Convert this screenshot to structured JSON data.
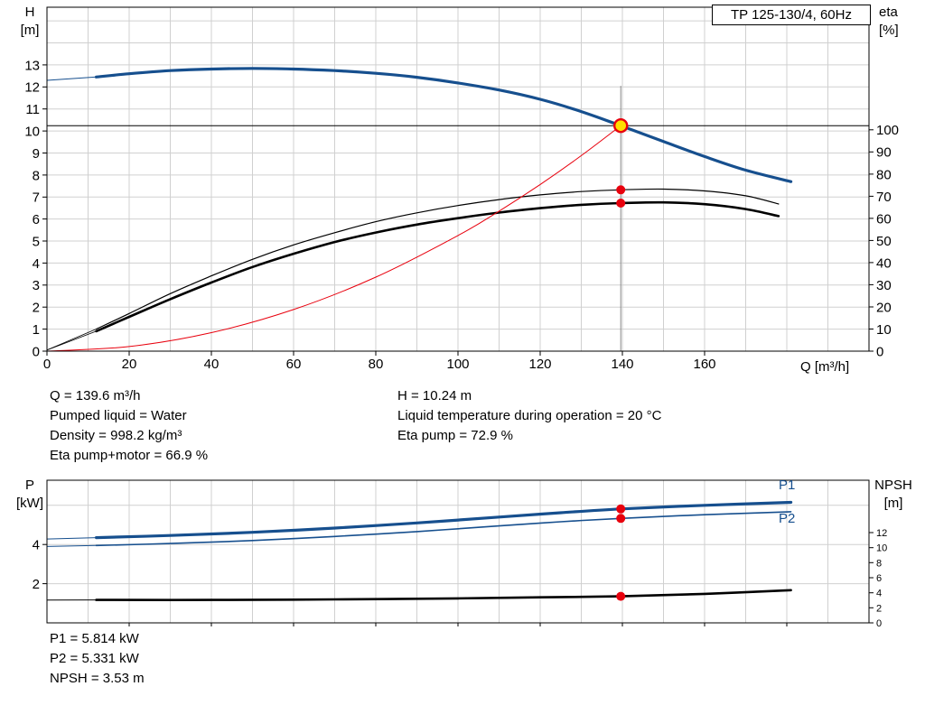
{
  "colors": {
    "blue": "#164f8e",
    "red": "#e8000d",
    "black": "#000000",
    "gray": "#8a8a8a",
    "grid": "#d0d0d0",
    "duty_yellow": "#ffdf00",
    "white": "#ffffff"
  },
  "annotations": {
    "col1": [
      "Q = 139.6 m³/h",
      "Pumped liquid = Water",
      "Density = 998.2 kg/m³",
      "Eta pump+motor = 66.9 %"
    ],
    "col2": [
      "H = 10.24 m",
      "Liquid temperature during operation = 20 °C",
      "Eta pump = 72.9 %"
    ],
    "power": [
      "P1 = 5.814 kW",
      "P2 = 5.331 kW",
      "NPSH = 3.53 m"
    ]
  },
  "chart_data": [
    {
      "type": "line",
      "title": "TP 125-130/4, 60Hz",
      "xlabel": "Q [m³/h]",
      "ylabel_left_lines": [
        "H",
        "[m]"
      ],
      "ylabel_right_lines": [
        "eta",
        "[%]"
      ],
      "xlim": [
        0,
        200
      ],
      "ylim_left": [
        0,
        15.62
      ],
      "ylim_right": [
        0,
        155.4
      ],
      "x_ticks": {
        "values": [
          0,
          20,
          40,
          60,
          80,
          100,
          120,
          140,
          160
        ],
        "minor": []
      },
      "left_ticks": [
        0,
        1,
        2,
        3,
        4,
        5,
        6,
        7,
        8,
        9,
        10,
        11,
        12,
        13
      ],
      "right_ticks": [
        0,
        10,
        20,
        30,
        40,
        50,
        60,
        70,
        80,
        90,
        100
      ],
      "grid": {
        "x_step": 10,
        "y_step": 1
      },
      "series": [
        {
          "name": "pump-curve-leadin",
          "axis": "left",
          "color": "blue",
          "width": 1,
          "points": [
            [
              0,
              12.3
            ],
            [
              12,
              12.45
            ]
          ]
        },
        {
          "name": "pump-curve",
          "axis": "left",
          "color": "blue",
          "width": 3.2,
          "points": [
            [
              12,
              12.45
            ],
            [
              20,
              12.6
            ],
            [
              30,
              12.74
            ],
            [
              40,
              12.81
            ],
            [
              50,
              12.84
            ],
            [
              60,
              12.81
            ],
            [
              70,
              12.74
            ],
            [
              80,
              12.62
            ],
            [
              90,
              12.44
            ],
            [
              100,
              12.18
            ],
            [
              110,
              11.86
            ],
            [
              120,
              11.44
            ],
            [
              130,
              10.88
            ],
            [
              139.6,
              10.24
            ],
            [
              150,
              9.52
            ],
            [
              160,
              8.84
            ],
            [
              170,
              8.22
            ],
            [
              181,
              7.7
            ]
          ]
        },
        {
          "name": "eta-pump-leadin",
          "axis": "right",
          "color": "black",
          "width": 0.8,
          "points": [
            [
              0,
              0.5
            ],
            [
              12,
              10
            ]
          ]
        },
        {
          "name": "eta-pump-curve",
          "axis": "right",
          "color": "black",
          "width": 1.2,
          "points": [
            [
              12,
              10
            ],
            [
              20,
              17
            ],
            [
              30,
              26
            ],
            [
              40,
              34
            ],
            [
              50,
              41.5
            ],
            [
              60,
              48
            ],
            [
              70,
              53.5
            ],
            [
              80,
              58.5
            ],
            [
              90,
              62.5
            ],
            [
              100,
              65.8
            ],
            [
              110,
              68.5
            ],
            [
              120,
              70.6
            ],
            [
              130,
              72.1
            ],
            [
              139.6,
              72.9
            ],
            [
              150,
              73.2
            ],
            [
              160,
              72.4
            ],
            [
              170,
              70.2
            ],
            [
              178,
              66.5
            ]
          ]
        },
        {
          "name": "eta-pump-motor-leadin",
          "axis": "right",
          "color": "black",
          "width": 0.8,
          "points": [
            [
              0,
              0.5
            ],
            [
              12,
              9
            ]
          ]
        },
        {
          "name": "eta-pump-motor-curve",
          "axis": "right",
          "color": "black",
          "width": 2.6,
          "points": [
            [
              12,
              9
            ],
            [
              20,
              15.5
            ],
            [
              30,
              23.5
            ],
            [
              40,
              31
            ],
            [
              50,
              38
            ],
            [
              60,
              44
            ],
            [
              70,
              49.3
            ],
            [
              80,
              53.6
            ],
            [
              90,
              57.2
            ],
            [
              100,
              60.1
            ],
            [
              110,
              62.6
            ],
            [
              120,
              64.6
            ],
            [
              130,
              66.1
            ],
            [
              139.6,
              66.9
            ],
            [
              150,
              67.2
            ],
            [
              160,
              66.4
            ],
            [
              170,
              64.2
            ],
            [
              178,
              61
            ]
          ]
        },
        {
          "name": "system-curve",
          "axis": "left",
          "color": "red",
          "width": 1,
          "points": [
            [
              0,
              0
            ],
            [
              20,
              0.21
            ],
            [
              40,
              0.84
            ],
            [
              60,
              1.89
            ],
            [
              80,
              3.36
            ],
            [
              100,
              5.25
            ],
            [
              110,
              6.36
            ],
            [
              120,
              7.57
            ],
            [
              130,
              8.88
            ],
            [
              139.6,
              10.24
            ]
          ]
        }
      ],
      "reference_lines": [
        {
          "name": "duty-head-line",
          "orient": "h",
          "axis": "left",
          "value": 10.24,
          "from": 0,
          "to": 200,
          "color": "black",
          "width": 1
        },
        {
          "name": "duty-flow-line",
          "orient": "v",
          "axis": "left",
          "value": 139.6,
          "from": 0,
          "to": 12.05,
          "color": "gray",
          "width": 1
        }
      ],
      "markers": [
        {
          "name": "duty-point",
          "x": 139.6,
          "y": 10.24,
          "axis": "left",
          "r": 7,
          "fill": "duty_yellow",
          "stroke": "red",
          "stroke_width": 2.4
        },
        {
          "name": "eta-pump-point",
          "x": 139.6,
          "y": 72.9,
          "axis": "right",
          "r": 5,
          "fill": "red"
        },
        {
          "name": "eta-pump-motor-point",
          "x": 139.6,
          "y": 66.9,
          "axis": "right",
          "r": 5,
          "fill": "red"
        }
      ],
      "duty_point": {
        "Q_m3h": 139.6,
        "H_m": 10.24,
        "eta_pump_pct": 72.9,
        "eta_pump_plus_motor_pct": 66.9
      }
    },
    {
      "type": "line",
      "title": "",
      "xlabel": "",
      "ylabel_left_lines": [
        "P",
        "[kW]"
      ],
      "ylabel_right_lines": [
        "NPSH",
        "[m]"
      ],
      "xlim": [
        0,
        200
      ],
      "ylim_left": [
        0,
        7.28
      ],
      "ylim_right": [
        0,
        18.96
      ],
      "x_ticks": {
        "values": [],
        "minor": [
          20,
          40,
          60,
          80,
          100,
          120,
          140,
          160,
          180
        ]
      },
      "left_ticks": [
        2,
        4
      ],
      "right_ticks": [
        0,
        2,
        4,
        6,
        8,
        10,
        12
      ],
      "grid": {
        "x_step": 10,
        "y_step": 2
      },
      "series": [
        {
          "name": "p1-curve-leadin",
          "axis": "left",
          "color": "blue",
          "width": 1,
          "points": [
            [
              0,
              4.28
            ],
            [
              12,
              4.35
            ]
          ]
        },
        {
          "name": "p1-curve",
          "axis": "left",
          "color": "blue",
          "width": 3.2,
          "points": [
            [
              12,
              4.35
            ],
            [
              30,
              4.46
            ],
            [
              50,
              4.62
            ],
            [
              70,
              4.84
            ],
            [
              90,
              5.1
            ],
            [
              110,
              5.4
            ],
            [
              125,
              5.62
            ],
            [
              139.6,
              5.814
            ],
            [
              160,
              6.0
            ],
            [
              181,
              6.15
            ]
          ]
        },
        {
          "name": "p2-curve-leadin",
          "axis": "left",
          "color": "blue",
          "width": 1,
          "points": [
            [
              0,
              3.9
            ],
            [
              12,
              3.95
            ]
          ]
        },
        {
          "name": "p2-curve",
          "axis": "left",
          "color": "blue",
          "width": 1.6,
          "points": [
            [
              12,
              3.95
            ],
            [
              30,
              4.05
            ],
            [
              50,
              4.2
            ],
            [
              70,
              4.41
            ],
            [
              90,
              4.66
            ],
            [
              110,
              4.95
            ],
            [
              125,
              5.16
            ],
            [
              139.6,
              5.331
            ],
            [
              160,
              5.52
            ],
            [
              181,
              5.67
            ]
          ]
        },
        {
          "name": "npsh-curve-leadin",
          "axis": "right",
          "color": "black",
          "width": 1,
          "points": [
            [
              0,
              3.02
            ],
            [
              12,
              3.05
            ]
          ]
        },
        {
          "name": "npsh-curve",
          "axis": "right",
          "color": "black",
          "width": 2.6,
          "points": [
            [
              12,
              3.05
            ],
            [
              40,
              3.05
            ],
            [
              70,
              3.12
            ],
            [
              100,
              3.25
            ],
            [
              120,
              3.4
            ],
            [
              139.6,
              3.53
            ],
            [
              160,
              3.85
            ],
            [
              181,
              4.35
            ]
          ]
        }
      ],
      "reference_lines": [],
      "markers": [
        {
          "name": "p1-point",
          "x": 139.6,
          "y": 5.814,
          "axis": "left",
          "r": 5,
          "fill": "red"
        },
        {
          "name": "p2-point",
          "x": 139.6,
          "y": 5.331,
          "axis": "left",
          "r": 5,
          "fill": "red"
        },
        {
          "name": "npsh-point",
          "x": 139.6,
          "y": 3.53,
          "axis": "right",
          "r": 5,
          "fill": "red"
        }
      ],
      "curve_labels": [
        {
          "text": "P1"
        },
        {
          "text": "P2"
        }
      ],
      "duty_point": {
        "Q_m3h": 139.6,
        "P1_kW": 5.814,
        "P2_kW": 5.331,
        "NPSH_m": 3.53
      }
    }
  ]
}
